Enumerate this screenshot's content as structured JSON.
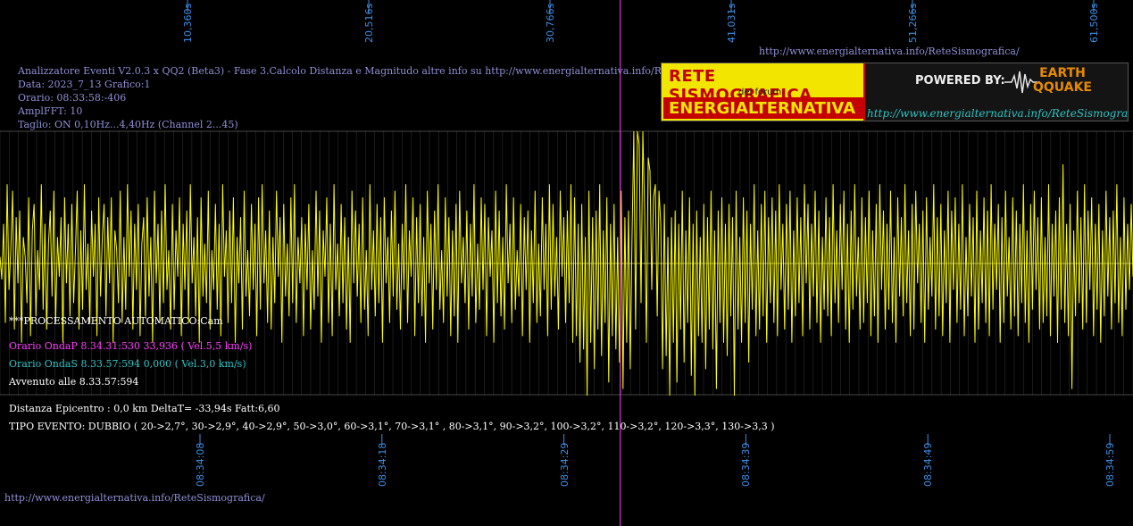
{
  "colors": {
    "trace": "#ffff00",
    "grid": "#c8c8c8",
    "marker": "#ff3bff",
    "tick": "#3b8fe6",
    "info": "#8f8fd6"
  },
  "header": {
    "title": "Analizzatore Eventi V2.0.3 x QQ2 (Beta3) - Fase 3.Calcolo Distanza e Magnitudo altre info su http://www.energialternativa.info/ReteSism",
    "data": "Data: 2023_7_13 Grafico:1",
    "orario": "Orario: 08:33:58:-406",
    "ampl": "AmplFFT: 10",
    "taglio": "Taglio: ON 0,10Hz...4,40Hz      (Channel 2...45)"
  },
  "urls": {
    "top": "http://www.energialternativa.info/ReteSismografica/",
    "bottom": "http://www.energialternativa.info/ReteSismografica/"
  },
  "logo": {
    "line1": "RETE SISMOGRAFICA",
    "line2": "del forum",
    "line3": "ENERGIALTERNATIVA",
    "powered": "POWERED BY:",
    "brand1": "EARTH",
    "brand2": "QQUAKE",
    "url": "http://www.energialternativa.info/ReteSismografica"
  },
  "results": {
    "processing": "***PROCESSAMENTO AUTOMATICO:Cam",
    "onda_p": "Orario OndaP 8.34.31:530  33,936 ( Vel.5,5 km/s)",
    "onda_s": "Orario OndaS 8.33.57:594  0,000 ( Vel.3,0 km/s)",
    "avvenuto": "Avvenuto alle 8.33.57:594",
    "distanza": "Distanza Epicentro : 0,0 km DeltaT= -33,94s  Fatt:6,60",
    "tipo": "TIPO EVENTO: DUBBIO ( 20->2,7°, 30->2,9°, 40->2,9°, 50->3,0°, 60->3,1°, 70->3,1° , 80->3,1°, 90->3,2°, 100->3,2°, 110->3,2°, 120->3,3°, 130->3,3 )"
  },
  "chart_data": {
    "type": "line",
    "top_axis_ticks": [
      "10,360s",
      "20,516s",
      "30,766s",
      "41,031s",
      "51,266s",
      "61,500s"
    ],
    "bottom_axis_ticks": [
      "08:34:08",
      "08:34:18",
      "08:34:29",
      "08:34:39",
      "08:34:49",
      "08:34:59"
    ],
    "time_range_s": [
      0,
      62
    ],
    "ylim": [
      -1,
      1
    ],
    "marker_time_s": 33.94,
    "grid": true,
    "series": [
      {
        "amplitude": [
          0.05,
          -0.12,
          0.3,
          -0.45,
          0.6,
          -0.2,
          0.1,
          0.55,
          -0.5,
          0.35,
          -0.15,
          0.4,
          -0.6,
          0.2,
          0.05,
          -0.3,
          0.5,
          -0.55,
          0.25,
          0.45,
          -0.4,
          0.1,
          -0.2,
          0.6,
          -0.35,
          0.3,
          -0.5,
          0.15,
          0.4,
          -0.25,
          0.55,
          -0.45,
          0.2,
          -0.1,
          0.35,
          -0.6,
          0.5,
          -0.15,
          0.3,
          -0.4,
          0.45,
          -0.3,
          0.1,
          0.55,
          -0.5,
          0.25,
          -0.35,
          0.6,
          -0.2,
          0.15,
          -0.45,
          0.4,
          -0.1,
          0.3,
          -0.55,
          0.5,
          -0.25,
          0.2,
          0.45,
          -0.4,
          0.35,
          -0.15,
          0.5,
          -0.6,
          0.25,
          0.1,
          -0.3,
          0.55,
          -0.45,
          0.2,
          -0.35,
          0.6,
          -0.1,
          0.4,
          -0.5,
          0.3,
          -0.2,
          0.45,
          -0.55,
          0.15,
          0.35,
          -0.4,
          0.5,
          -0.25,
          0.2,
          -0.6,
          0.55,
          -0.15,
          0.3,
          -0.45,
          0.4,
          -0.3,
          0.6,
          -0.2,
          0.1,
          -0.5,
          0.45,
          -0.35,
          0.25,
          -0.1,
          0.5,
          -0.55,
          0.3,
          -0.2,
          0.4,
          -0.45,
          0.6,
          -0.15,
          0.2,
          -0.4,
          0.35,
          -0.6,
          0.5,
          -0.25,
          0.15,
          -0.3,
          0.55,
          -0.5,
          0.1,
          -0.2,
          0.45,
          -0.35,
          0.3,
          -0.55,
          0.6,
          -0.1,
          0.25,
          -0.45,
          0.4,
          -0.3,
          0.5,
          -0.6,
          0.2,
          -0.15,
          0.35,
          -0.5,
          0.55,
          -0.25,
          0.1,
          -0.4,
          0.45,
          -0.2,
          0.3,
          -0.55,
          0.5,
          -0.35,
          0.6,
          -0.15,
          0.25,
          -0.45,
          0.4,
          -0.5,
          0.2,
          -0.3,
          0.55,
          -0.1,
          0.35,
          -0.6,
          0.45,
          -0.25,
          0.15,
          -0.4,
          0.5,
          -0.3,
          0.6,
          -0.45,
          0.2,
          -0.15,
          0.35,
          -0.55,
          0.3,
          -0.2,
          0.45,
          -0.5,
          0.1,
          -0.35,
          0.55,
          -0.25,
          0.4,
          -0.6,
          0.25,
          -0.1,
          0.5,
          -0.45,
          0.3,
          -0.55,
          0.6,
          -0.2,
          0.15,
          -0.4,
          0.45,
          -0.3,
          0.35,
          -0.5,
          0.2,
          -0.6,
          0.55,
          -0.15,
          0.4,
          -0.25,
          0.3,
          -0.45,
          0.5,
          -0.35,
          0.1,
          -0.55,
          0.6,
          -0.2,
          0.25,
          -0.4,
          0.45,
          -0.3,
          0.35,
          -0.6,
          0.5,
          -0.15,
          0.2,
          -0.45,
          0.4,
          -0.25,
          0.55,
          -0.35,
          0.15,
          -0.5,
          0.3,
          -0.2,
          0.6,
          -0.45,
          0.25,
          -0.1,
          0.5,
          -0.55,
          0.35,
          -0.3,
          0.45,
          -0.4,
          0.2,
          -0.6,
          0.55,
          -0.15,
          0.3,
          -0.5,
          0.4,
          -0.2,
          0.6,
          -0.35,
          0.1,
          -0.45,
          0.5,
          -0.25,
          0.35,
          -0.55,
          0.25,
          -0.4,
          0.45,
          -0.6,
          0.55,
          -0.15,
          0.2,
          -0.3,
          0.4,
          -0.5,
          0.3,
          -0.25,
          0.6,
          -0.45,
          0.15,
          -0.35,
          0.5,
          -0.2,
          0.45,
          -0.55,
          0.35,
          -0.1,
          0.25,
          -0.6,
          0.55,
          -0.3,
          0.4,
          -0.4,
          0.2,
          -0.5,
          0.6,
          -0.15,
          0.3,
          -0.45,
          0.5,
          -0.35,
          0.1,
          -0.25,
          0.45,
          -0.55,
          0.35,
          -0.2,
          0.4,
          -0.6,
          0.25,
          -0.3,
          0.55,
          -0.45,
          0.15,
          -0.4,
          0.5,
          -0.2,
          0.3,
          -0.55,
          0.6,
          -0.35,
          0.45,
          -0.25,
          0.2,
          -0.5,
          0.55,
          -0.1,
          0.35,
          -0.45,
          0.4,
          -0.3,
          0.6,
          -0.6,
          0.5,
          -0.55,
          0.3,
          -0.75,
          0.45,
          -0.65,
          0.2,
          -1.0,
          0.55,
          -0.6,
          0.35,
          -0.8,
          0.4,
          -0.5,
          0.6,
          -0.7,
          0.25,
          -0.45,
          0.5,
          -0.9,
          0.3,
          -0.55,
          0.45,
          -0.65,
          0.2,
          -0.75,
          0.55,
          -0.95,
          0.35,
          -0.6,
          0.4,
          -0.8,
          0.2,
          1.0,
          -0.5,
          1.0,
          0.9,
          -0.3,
          1.0,
          0.4,
          -0.6,
          0.8,
          0.7,
          -0.2,
          0.5,
          0.6,
          -0.4,
          0.55,
          0.3,
          -0.8,
          0.45,
          -0.7,
          0.2,
          -1.0,
          0.35,
          -0.6,
          0.4,
          -0.9,
          0.3,
          -0.5,
          0.55,
          -0.75,
          0.25,
          -0.45,
          0.5,
          -0.85,
          0.3,
          -1.0,
          0.4,
          -0.55,
          0.2,
          -0.6,
          0.45,
          -0.8,
          0.35,
          -0.5,
          0.55,
          -0.65,
          0.25,
          -0.95,
          0.4,
          -0.45,
          0.5,
          -0.6,
          0.3,
          -0.7,
          0.45,
          -0.4,
          0.35,
          -1.0,
          0.55,
          -0.5,
          0.2,
          -0.6,
          0.5,
          -0.45,
          0.4,
          -0.75,
          0.3,
          -0.35,
          0.6,
          -0.55,
          0.25,
          -0.5,
          0.45,
          -0.4,
          0.55,
          -0.6,
          0.35,
          -0.3,
          0.5,
          -0.45,
          0.4,
          -0.55,
          0.6,
          -0.2,
          0.3,
          -0.5,
          0.45,
          -0.35,
          0.55,
          -0.6,
          0.25,
          -0.4,
          0.5,
          -0.3,
          0.35,
          -0.55,
          0.6,
          -0.15,
          0.45,
          -0.5,
          0.3,
          -0.25,
          0.55,
          -0.45,
          0.4,
          -0.6,
          0.2,
          -0.35,
          0.5,
          -0.4,
          0.35,
          -0.55,
          0.6,
          -0.3,
          0.25,
          -0.45,
          0.45,
          -0.2,
          0.55,
          -0.5,
          0.3,
          -0.6,
          0.4,
          -0.35,
          0.6,
          -0.25,
          0.2,
          -0.5,
          0.5,
          -0.45,
          0.35,
          -0.3,
          0.55,
          -0.55,
          0.25,
          -0.4,
          0.45,
          -0.6,
          0.6,
          -0.2,
          0.4,
          -0.5,
          0.3,
          -0.35,
          0.55,
          -0.45,
          0.2,
          -0.6,
          0.5,
          -0.25,
          0.35,
          -0.4,
          0.6,
          -0.3,
          0.25,
          -0.55,
          0.45,
          -0.5,
          0.55,
          -0.15,
          0.3,
          -0.45,
          0.4,
          -0.6,
          0.5,
          -0.35,
          0.2,
          -0.25,
          0.6,
          -0.5,
          0.35,
          -0.4,
          0.45,
          -0.55,
          0.25,
          -0.3,
          0.55,
          -0.6,
          0.4,
          -0.2,
          0.5,
          -0.45,
          0.3,
          -0.35,
          0.6,
          -0.55,
          0.2,
          -0.4,
          0.45,
          -0.25,
          0.35,
          -0.6,
          0.55,
          -0.5,
          0.25,
          -0.3,
          0.5,
          -0.45,
          0.4,
          -0.55,
          0.6,
          -0.35,
          0.3,
          -0.2,
          0.45,
          -0.6,
          0.35,
          -0.45,
          0.55,
          -0.25,
          0.2,
          -0.5,
          0.5,
          -0.4,
          0.4,
          -0.55,
          0.3,
          -0.3,
          0.6,
          -0.45,
          0.25,
          -0.6,
          0.45,
          -0.35,
          0.55,
          -0.2,
          0.35,
          -0.5,
          0.5,
          -0.45,
          0.2,
          -0.4,
          0.6,
          -0.55,
          0.3,
          -0.25,
          0.4,
          -0.6,
          0.5,
          -0.35,
          0.75,
          -0.45,
          0.3,
          -0.55,
          0.45,
          -0.95,
          0.25,
          -0.4,
          0.55,
          -0.3,
          0.35,
          -0.5,
          0.6,
          -0.45,
          0.4,
          -0.2,
          0.5,
          -0.55,
          0.3,
          -0.35,
          0.45,
          -0.6,
          0.25,
          -0.4,
          0.55,
          -0.25,
          0.35,
          -0.5,
          0.4,
          -0.3,
          0.6,
          -0.45,
          0.2,
          -0.55,
          0.5,
          -0.35,
          0.3,
          -0.2,
          0.45,
          -0.1
        ]
      }
    ]
  }
}
